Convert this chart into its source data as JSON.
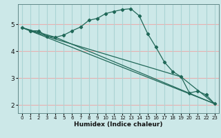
{
  "xlabel": "Humidex (Indice chaleur)",
  "bg_color": "#cce8e8",
  "grid_color_h": "#e8b0b0",
  "grid_color_v": "#aad4d4",
  "line_color": "#206858",
  "xlim": [
    -0.5,
    23.5
  ],
  "ylim": [
    1.7,
    5.75
  ],
  "xticks": [
    0,
    1,
    2,
    3,
    4,
    5,
    6,
    7,
    8,
    9,
    10,
    11,
    12,
    13,
    14,
    15,
    16,
    17,
    18,
    19,
    20,
    21,
    22,
    23
  ],
  "yticks": [
    2,
    3,
    4,
    5
  ],
  "curve": {
    "x": [
      0,
      1,
      2,
      3,
      4,
      5,
      6,
      7,
      8,
      9,
      10,
      11,
      12,
      13,
      14,
      15,
      16,
      17,
      18,
      19,
      20,
      21,
      22,
      23
    ],
    "y": [
      4.88,
      4.76,
      4.76,
      4.55,
      4.52,
      4.6,
      4.76,
      4.9,
      5.15,
      5.22,
      5.4,
      5.48,
      5.55,
      5.58,
      5.32,
      4.66,
      4.15,
      3.6,
      3.25,
      3.05,
      2.45,
      2.52,
      2.38,
      2.05
    ]
  },
  "straight_lines": [
    {
      "x": [
        0,
        23
      ],
      "y": [
        4.88,
        2.05
      ]
    },
    {
      "x": [
        0,
        4,
        23
      ],
      "y": [
        4.88,
        4.52,
        2.05
      ]
    },
    {
      "x": [
        0,
        4,
        19,
        23
      ],
      "y": [
        4.88,
        4.45,
        3.05,
        2.05
      ]
    }
  ]
}
